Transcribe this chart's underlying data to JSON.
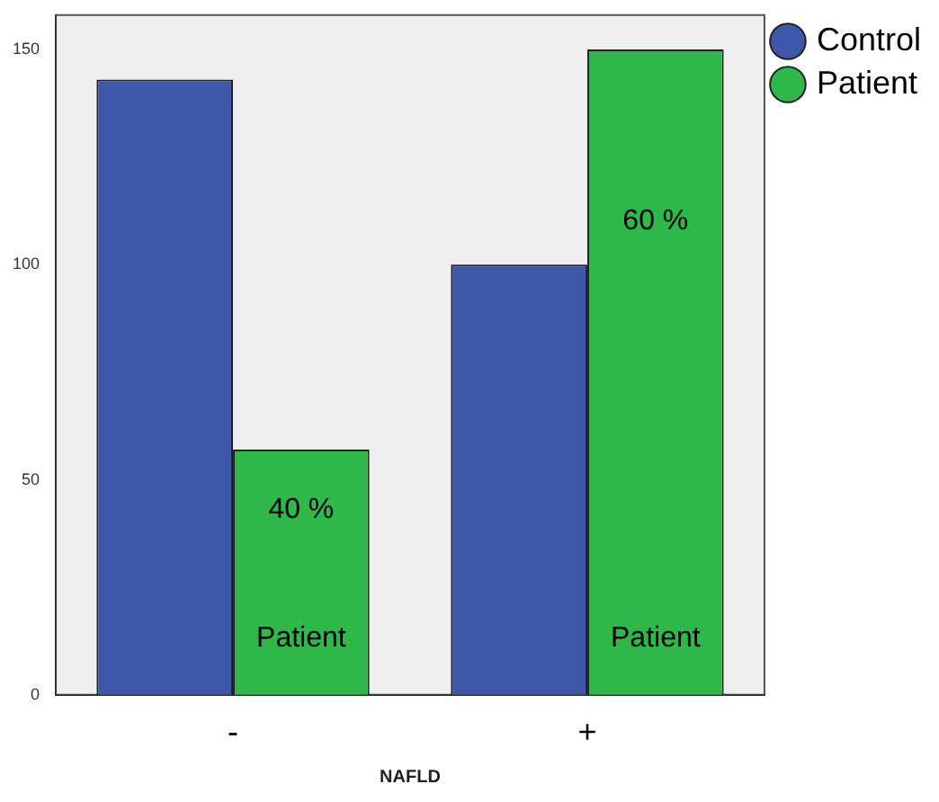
{
  "chart_data": {
    "type": "bar",
    "xlabel": "NAFLD",
    "categories": [
      "-",
      "+"
    ],
    "series": [
      {
        "name": "Control",
        "color": "#3f57a8",
        "values": [
          143,
          100
        ]
      },
      {
        "name": "Patient",
        "color": "#2eb84a",
        "values": [
          57,
          150
        ]
      }
    ],
    "ylim": [
      0,
      158
    ],
    "yticks": [
      0,
      50,
      100,
      150
    ],
    "grid": false,
    "legend": "top right",
    "annotations": [
      {
        "text": "40 %",
        "x": "-",
        "y": 43
      },
      {
        "text": "60 %",
        "x": "+",
        "y": 110
      },
      {
        "text": "Patient",
        "x": "-",
        "y": 13
      },
      {
        "text": "Patient",
        "x": "+",
        "y": 13
      }
    ]
  }
}
